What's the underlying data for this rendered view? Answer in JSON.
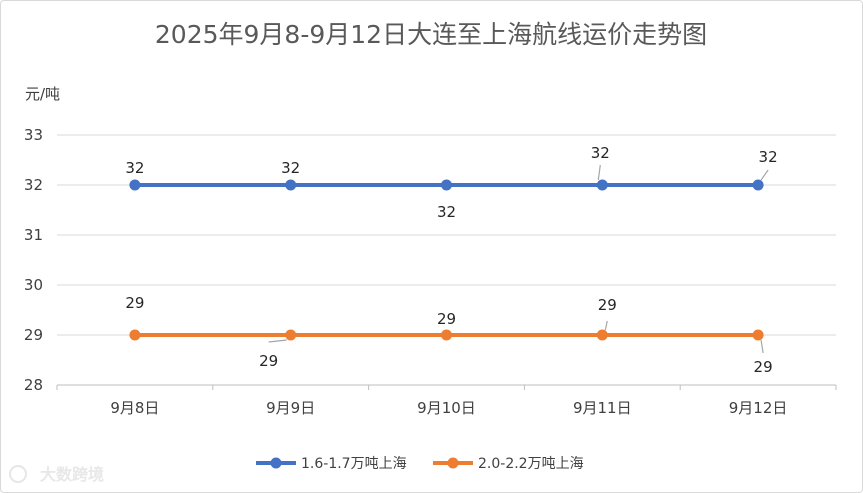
{
  "chart_data": {
    "type": "line",
    "title": "2025年9月8-9月12日大连至上海航线运价走势图",
    "ylabel": "元/吨",
    "xlabel": "",
    "categories": [
      "9月8日",
      "9月9日",
      "9月10日",
      "9月11日",
      "9月12日"
    ],
    "ylim": [
      28,
      33
    ],
    "yticks": [
      28,
      29,
      30,
      31,
      32,
      33
    ],
    "grid": true,
    "legend_position": "bottom",
    "series": [
      {
        "name": "1.6-1.7万吨上海",
        "color": "#4472C4",
        "values": [
          32,
          32,
          32,
          32,
          32
        ]
      },
      {
        "name": "2.0-2.2万吨上海",
        "color": "#ED7D31",
        "values": [
          29,
          29,
          29,
          29,
          29
        ]
      }
    ]
  },
  "watermark": {
    "text": "大数跨境"
  }
}
